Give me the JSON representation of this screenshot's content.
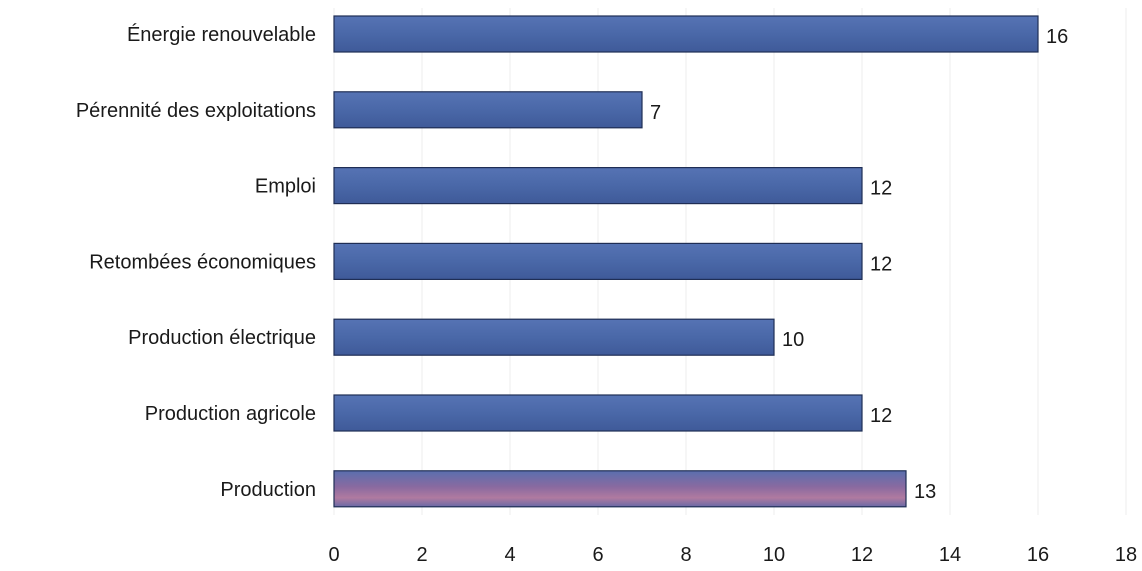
{
  "chart_data": {
    "type": "bar",
    "orientation": "horizontal",
    "categories": [
      "Énergie renouvelable",
      "Pérennité des exploitations",
      "Emploi",
      "Retombées économiques",
      "Production électrique",
      "Production agricole",
      "Production"
    ],
    "values": [
      16,
      7,
      12,
      12,
      10,
      12,
      13
    ],
    "xlim": [
      0,
      18
    ],
    "xticks": [
      0,
      2,
      4,
      6,
      8,
      10,
      12,
      14,
      16,
      18
    ],
    "title": "",
    "xlabel": "",
    "ylabel": "",
    "legend": "none",
    "grid": true,
    "bar_color": "#4a68a8",
    "bar_edge_color": "#1f2e55",
    "last_bar_tint": "#9a6b93"
  }
}
